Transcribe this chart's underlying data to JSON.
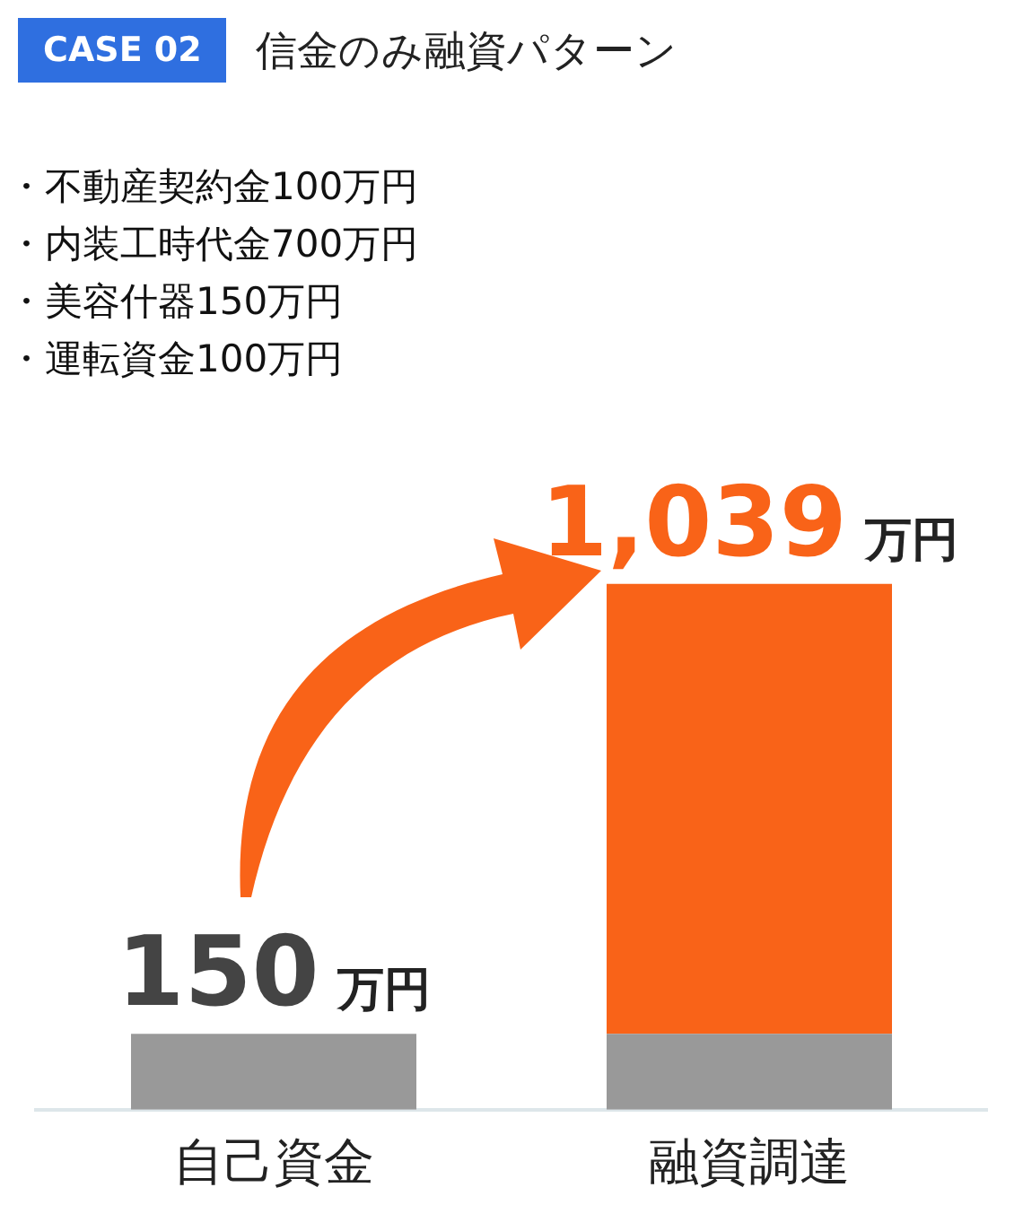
{
  "chart_data": {
    "type": "bar",
    "title": "信金のみ融資パターン",
    "subtitle": "CASE 02",
    "annotations": [
      "・不動産契約金100万円",
      "・内装工時代金700万円",
      "・美容什器150万円",
      "・運転資金100万円"
    ],
    "categories": [
      "自己資金",
      "融資調達"
    ],
    "stacked": true,
    "series": [
      {
        "color": "#999999",
        "values": [
          150,
          150
        ],
        "value_labels": [
          "150万円",
          null
        ]
      },
      {
        "color": "#f96318",
        "values": [
          null,
          889
        ]
      }
    ],
    "totals": [
      null,
      "1,039万円"
    ],
    "grid": false,
    "legend": false
  }
}
